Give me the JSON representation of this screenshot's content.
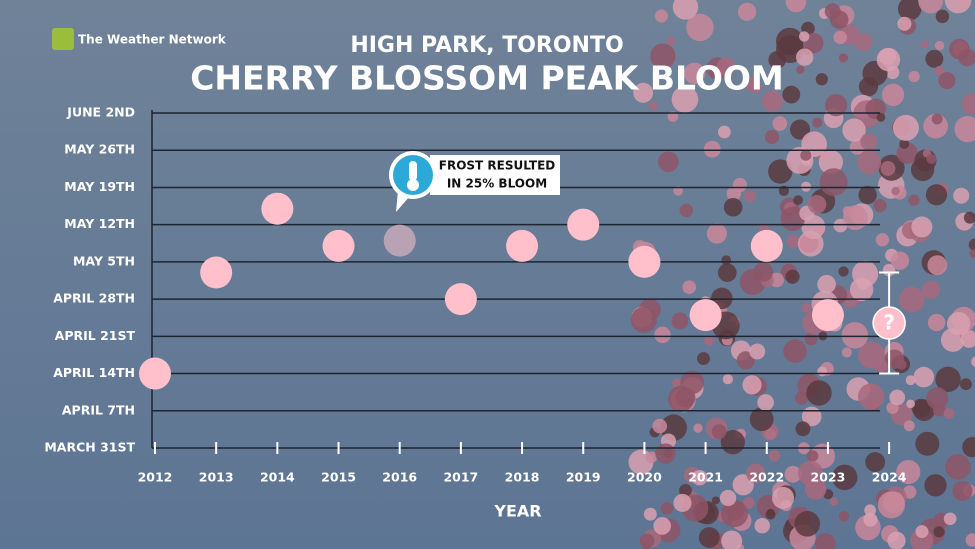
{
  "brand": "The Weather Network",
  "chart_data": {
    "type": "scatter",
    "subtitle": "HIGH PARK, TORONTO",
    "title": "CHERRY BLOSSOM PEAK BLOOM",
    "xlabel": "YEAR",
    "categories": [
      "2012",
      "2013",
      "2014",
      "2015",
      "2016",
      "2017",
      "2018",
      "2019",
      "2020",
      "2021",
      "2022",
      "2023",
      "2024"
    ],
    "values": [
      14,
      33,
      45,
      38,
      39,
      28,
      38,
      42,
      35,
      25,
      38,
      25,
      null
    ],
    "color": "#ffc0cb",
    "point_colors": [
      "#ffc0cb",
      "#ffc0cb",
      "#ffc0cb",
      "#ffc0cb",
      "#b9a2b3",
      "#ffc0cb",
      "#ffc0cb",
      "#ffc0cb",
      "#ffc0cb",
      "#ffc0cb",
      "#ffc0cb",
      "#ffc0cb",
      "#ffc0cb"
    ],
    "forecast": {
      "low": 14,
      "high": 33,
      "label": "?"
    },
    "annotation": {
      "lines": [
        "FROST RESULTED",
        "IN 25% BLOOM"
      ]
    },
    "ylim": [
      0,
      63
    ],
    "yticks": [
      {
        "value": 0,
        "label": "MARCH 31ST"
      },
      {
        "value": 7,
        "label": "APRIL 7TH"
      },
      {
        "value": 14,
        "label": "APRIL 14TH"
      },
      {
        "value": 21,
        "label": "APRIL 21ST"
      },
      {
        "value": 28,
        "label": "APRIL 28TH"
      },
      {
        "value": 35,
        "label": "MAY 5TH"
      },
      {
        "value": 42,
        "label": "MAY 12TH"
      },
      {
        "value": 49,
        "label": "MAY 19TH"
      },
      {
        "value": 56,
        "label": "MAY 26TH"
      },
      {
        "value": 63,
        "label": "JUNE 2ND"
      }
    ],
    "grid": true
  }
}
